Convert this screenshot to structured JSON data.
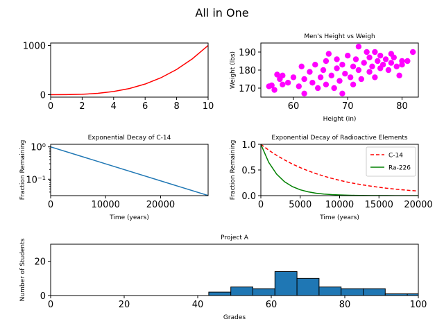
{
  "figure": {
    "title": "All in One"
  },
  "chart_data": [
    {
      "id": "cubic",
      "type": "line",
      "title": "",
      "xlabel": "",
      "ylabel": "",
      "xlim": [
        0,
        10
      ],
      "ylim": [
        -50,
        1050
      ],
      "xticks": [
        0,
        2,
        4,
        6,
        8,
        10
      ],
      "yticks": [
        0,
        1000
      ],
      "series": [
        {
          "color": "#ff0000",
          "x": [
            0,
            1,
            2,
            3,
            4,
            5,
            6,
            7,
            8,
            9,
            10
          ],
          "y": [
            0,
            1,
            8,
            27,
            64,
            125,
            216,
            343,
            512,
            729,
            1000
          ]
        }
      ]
    },
    {
      "id": "height-weight",
      "type": "scatter",
      "title": "Men's Height vs Weigh",
      "xlabel": "Height (in)",
      "ylabel": "Weight (lbs)",
      "xlim": [
        54,
        83
      ],
      "ylim": [
        165,
        195
      ],
      "xticks": [
        60,
        70,
        80
      ],
      "yticks": [
        170,
        180,
        190
      ],
      "color": "#ff00ff",
      "points": [
        [
          55.5,
          171
        ],
        [
          56,
          171.5
        ],
        [
          56.5,
          169
        ],
        [
          57,
          177.5
        ],
        [
          57.5,
          175
        ],
        [
          58,
          172
        ],
        [
          58,
          177
        ],
        [
          59,
          173
        ],
        [
          60,
          176
        ],
        [
          61,
          171
        ],
        [
          61.5,
          182
        ],
        [
          62,
          167
        ],
        [
          62,
          175
        ],
        [
          63,
          179
        ],
        [
          63.5,
          173
        ],
        [
          64,
          183
        ],
        [
          64.5,
          170
        ],
        [
          65,
          176
        ],
        [
          65.5,
          180
        ],
        [
          66,
          172
        ],
        [
          66,
          185
        ],
        [
          66.5,
          189
        ],
        [
          67,
          177
        ],
        [
          67.5,
          170
        ],
        [
          68,
          181
        ],
        [
          68,
          186
        ],
        [
          68.5,
          174
        ],
        [
          69,
          167
        ],
        [
          69,
          183
        ],
        [
          69.5,
          178
        ],
        [
          70,
          188
        ],
        [
          70.5,
          176
        ],
        [
          71,
          182
        ],
        [
          71,
          172
        ],
        [
          71.5,
          186
        ],
        [
          72,
          180
        ],
        [
          72,
          193
        ],
        [
          72.5,
          175
        ],
        [
          73,
          184
        ],
        [
          73.5,
          190
        ],
        [
          74,
          179
        ],
        [
          74,
          187
        ],
        [
          74.5,
          182
        ],
        [
          75,
          176
        ],
        [
          75,
          190
        ],
        [
          75.5,
          185
        ],
        [
          76,
          181
        ],
        [
          76,
          188
        ],
        [
          76.5,
          183
        ],
        [
          77,
          186
        ],
        [
          77.5,
          180
        ],
        [
          78,
          189
        ],
        [
          78,
          184
        ],
        [
          78.5,
          187
        ],
        [
          79,
          182
        ],
        [
          79.5,
          177
        ],
        [
          80,
          183
        ],
        [
          80,
          185
        ],
        [
          81,
          185
        ],
        [
          82,
          190
        ]
      ]
    },
    {
      "id": "c14-decay",
      "type": "line",
      "title": "Exponential Decay of C-14",
      "xlabel": "Time (years)",
      "ylabel": "Fraction Remaining",
      "xlim": [
        0,
        28650
      ],
      "ylim": [
        0.031,
        1.2
      ],
      "yscale": "log",
      "xticks": [
        0,
        10000,
        20000
      ],
      "yticks": [
        1,
        0.1
      ],
      "ytick_labels": [
        "10⁰",
        "10⁻¹"
      ],
      "series": [
        {
          "color": "#1f77b4",
          "x": [
            0,
            28650
          ],
          "y": [
            1,
            0.03125
          ]
        }
      ]
    },
    {
      "id": "radioactive-decay",
      "type": "line",
      "title": "Exponential Decay of Radioactive Elements",
      "xlabel": "Time (years)",
      "ylabel": "Fraction Remaining",
      "xlim": [
        0,
        20000
      ],
      "ylim": [
        0,
        1
      ],
      "xticks": [
        0,
        5000,
        10000,
        15000,
        20000
      ],
      "yticks": [
        0,
        0.5,
        1.0
      ],
      "ytick_labels": [
        "0.0",
        "0.5",
        "1.0"
      ],
      "legend_position": "top-right",
      "series": [
        {
          "name": "C-14",
          "color": "#ff0000",
          "dash": true,
          "x": [
            0,
            1000,
            2000,
            3000,
            4000,
            5000,
            6000,
            7000,
            8000,
            9000,
            10000,
            11000,
            12000,
            13000,
            14000,
            15000,
            16000,
            17000,
            18000,
            19000,
            20000
          ],
          "y": [
            1,
            0.886,
            0.785,
            0.696,
            0.616,
            0.546,
            0.484,
            0.429,
            0.38,
            0.337,
            0.298,
            0.264,
            0.234,
            0.208,
            0.184,
            0.163,
            0.144,
            0.128,
            0.113,
            0.1,
            0.089
          ]
        },
        {
          "name": "Ra-226",
          "color": "#008000",
          "dash": false,
          "x": [
            0,
            1000,
            2000,
            3000,
            4000,
            5000,
            6000,
            7000,
            8000,
            9000,
            10000,
            11000,
            12000,
            13000,
            14000,
            15000,
            16000,
            17000,
            18000,
            19000,
            20000
          ],
          "y": [
            1,
            0.648,
            0.42,
            0.272,
            0.176,
            0.114,
            0.074,
            0.048,
            0.031,
            0.02,
            0.013,
            0.008,
            0.005,
            0.003,
            0.002,
            0.001,
            0.001,
            0,
            0,
            0,
            0
          ]
        }
      ]
    },
    {
      "id": "project-a",
      "type": "bar",
      "title": "Project A",
      "xlabel": "Grades",
      "ylabel": "Number of Students",
      "xlim": [
        0,
        100
      ],
      "ylim": [
        0,
        30
      ],
      "xticks": [
        0,
        20,
        40,
        60,
        80,
        100
      ],
      "yticks": [
        0,
        20
      ],
      "color": "#1f77b4",
      "bins": [
        [
          43,
          49,
          2
        ],
        [
          49,
          55,
          5
        ],
        [
          55,
          61,
          4
        ],
        [
          61,
          67,
          14
        ],
        [
          67,
          73,
          10
        ],
        [
          73,
          79,
          5
        ],
        [
          79,
          85,
          4
        ],
        [
          85,
          91,
          4
        ],
        [
          91,
          97,
          1
        ],
        [
          97,
          100,
          1
        ]
      ]
    }
  ]
}
